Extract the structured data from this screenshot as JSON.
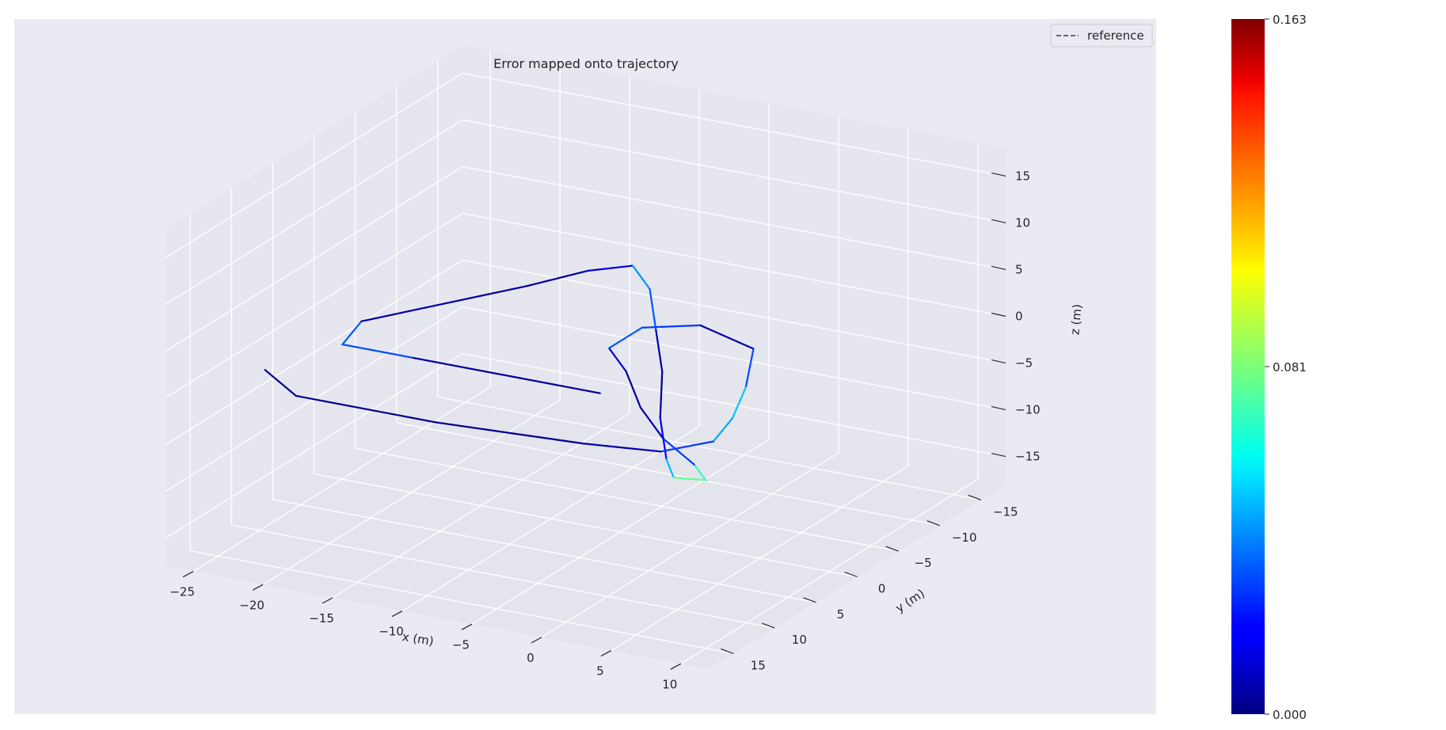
{
  "chart_data": {
    "type": "line",
    "projection": "3d",
    "title": "Error mapped onto trajectory",
    "xlabel": "x (m)",
    "ylabel": "y (m)",
    "zlabel": "z (m)",
    "xticks": [
      -25,
      -20,
      -15,
      -10,
      -5,
      0,
      5,
      10
    ],
    "yticks": [
      -15,
      -10,
      -5,
      0,
      5,
      10,
      15
    ],
    "zticks": [
      -15,
      -10,
      -5,
      0,
      5,
      10,
      15
    ],
    "xlim": [
      -27,
      12
    ],
    "ylim": [
      -18,
      18
    ],
    "zlim": [
      -18,
      18
    ],
    "grid": true,
    "legend": {
      "position": "top-right",
      "entries": [
        {
          "label": "reference",
          "style": "dashed",
          "color": "#666666"
        }
      ]
    },
    "series": [
      {
        "name": "reference",
        "style": "dashed",
        "color": "#666666",
        "points": [
          [
            -3.5,
            5,
            0
          ],
          [
            -17,
            5,
            0
          ],
          [
            -22,
            5,
            0
          ],
          [
            -23,
            1,
            0
          ],
          [
            -20,
            -4,
            0
          ],
          [
            -17,
            -9,
            0
          ],
          [
            -15,
            -13,
            0
          ],
          [
            -13,
            -15,
            0
          ],
          [
            -10,
            -12,
            0
          ],
          [
            -6,
            -6,
            0
          ],
          [
            -2,
            0,
            0
          ],
          [
            2,
            7,
            0
          ],
          [
            6,
            13,
            0
          ],
          [
            8,
            15.5,
            0
          ],
          [
            10,
            15,
            0
          ],
          [
            8,
            13,
            0
          ],
          [
            4,
            10,
            0
          ],
          [
            0,
            6,
            0
          ],
          [
            -4,
            1,
            0
          ],
          [
            -7,
            -2,
            0
          ],
          [
            -7,
            -6,
            0
          ],
          [
            -4,
            -8,
            0
          ],
          [
            1,
            -6,
            0
          ],
          [
            4,
            0,
            0
          ],
          [
            6,
            5,
            0
          ],
          [
            7,
            9,
            0
          ],
          [
            5,
            12,
            0
          ],
          [
            0,
            13,
            0
          ],
          [
            -10,
            14,
            0
          ],
          [
            -20,
            14,
            0
          ],
          [
            -24,
            11,
            0
          ]
        ]
      },
      {
        "name": "",
        "style": "solid",
        "color_scale": "jet",
        "points": [
          [
            -3.5,
            5,
            0
          ],
          [
            -17,
            5,
            0
          ],
          [
            -22,
            5,
            0
          ],
          [
            -23,
            1,
            0
          ],
          [
            -20,
            -4,
            0
          ],
          [
            -17,
            -9,
            0
          ],
          [
            -15,
            -13,
            0
          ],
          [
            -13,
            -15,
            0
          ],
          [
            -10,
            -12,
            0
          ],
          [
            -6,
            -6,
            0
          ],
          [
            -2,
            0,
            0
          ],
          [
            2,
            7,
            0
          ],
          [
            6,
            13,
            0
          ],
          [
            8,
            15.5,
            0
          ],
          [
            10,
            15,
            0
          ],
          [
            8,
            13,
            0
          ],
          [
            4,
            10,
            0
          ],
          [
            0,
            6,
            0
          ],
          [
            -4,
            1,
            0
          ],
          [
            -7,
            -2,
            0
          ],
          [
            -7,
            -6,
            0
          ],
          [
            -4,
            -8,
            0
          ],
          [
            1,
            -6,
            0
          ],
          [
            4,
            0,
            0
          ],
          [
            6,
            5,
            0
          ],
          [
            7,
            9,
            0
          ],
          [
            5,
            12,
            0
          ],
          [
            0,
            13,
            0
          ],
          [
            -10,
            14,
            0
          ],
          [
            -20,
            14,
            0
          ],
          [
            -24,
            11,
            0
          ]
        ],
        "errors": [
          0.004,
          0.005,
          0.06,
          0.01,
          0.006,
          0.004,
          0.005,
          0.03,
          0.06,
          0.01,
          0.006,
          0.004,
          0.035,
          0.065,
          0.09,
          0.05,
          0.01,
          0.005,
          0.003,
          0.02,
          0.05,
          0.01,
          0.005,
          0.06,
          0.045,
          0.05,
          0.01,
          0.004,
          0.003,
          0.002,
          0.002
        ]
      }
    ],
    "colorbar": {
      "colormap": "jet",
      "min": 0.0,
      "max": 0.163,
      "tick_labels": [
        "0.000",
        "0.081",
        "0.163"
      ]
    }
  }
}
